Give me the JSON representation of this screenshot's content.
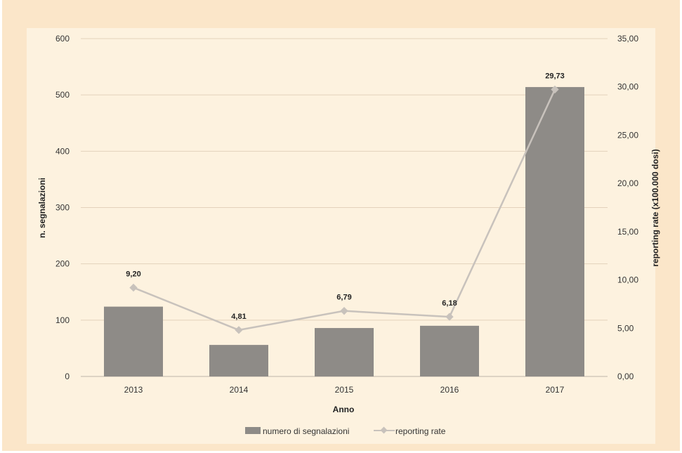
{
  "chart_data": {
    "type": "bar",
    "categories": [
      "2013",
      "2014",
      "2015",
      "2016",
      "2017"
    ],
    "series": [
      {
        "name": "numero di segnalazioni",
        "type": "bar",
        "axis": "left",
        "values": [
          124,
          56,
          86,
          90,
          514
        ],
        "color": "#8e8b87"
      },
      {
        "name": "reporting rate",
        "type": "line",
        "axis": "right",
        "values": [
          9.2,
          4.81,
          6.79,
          6.18,
          29.73
        ],
        "labels": [
          "9,20",
          "4,81",
          "6,79",
          "6,18",
          "29,73"
        ],
        "color": "#c8c2bc"
      }
    ],
    "xlabel": "Anno",
    "ylabel": "n. segnalazioni",
    "y2label": "reporting rate (x100.000 dosi)",
    "ylim": [
      0,
      600
    ],
    "y2lim": [
      0,
      35
    ],
    "yticks": [
      "0",
      "100",
      "200",
      "300",
      "400",
      "500",
      "600"
    ],
    "y2ticks": [
      "0,00",
      "5,00",
      "10,00",
      "15,00",
      "20,00",
      "25,00",
      "30,00",
      "35,00"
    ],
    "grid": true,
    "legend_position": "bottom"
  }
}
